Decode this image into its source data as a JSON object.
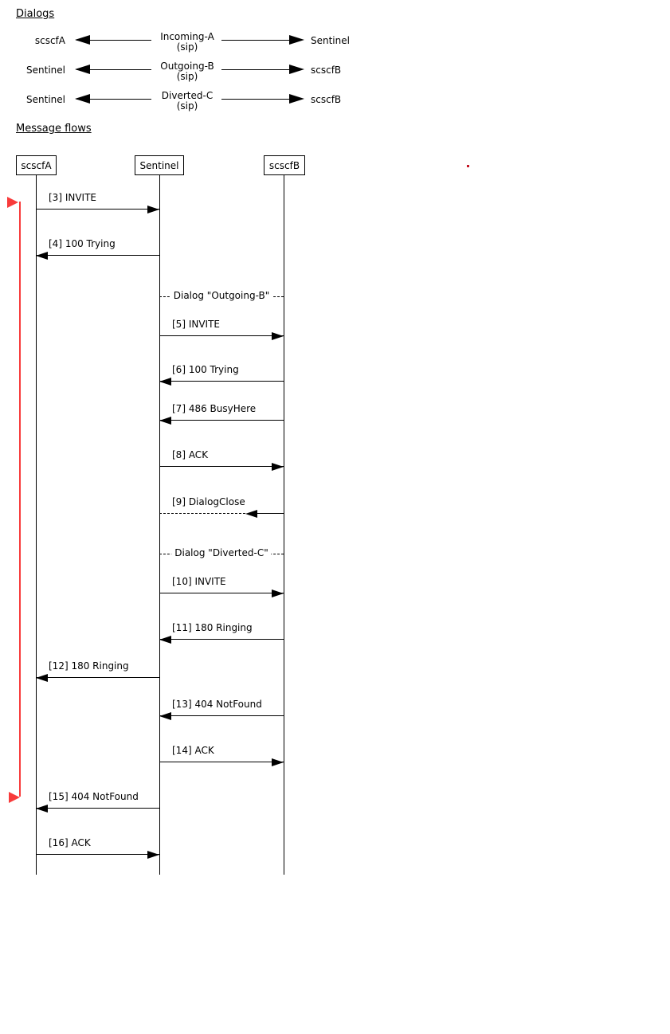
{
  "headings": {
    "dialogs": "Dialogs",
    "message_flows": "Message flows"
  },
  "dialogs": [
    {
      "left": "scscfA",
      "name": "Incoming-A",
      "protocol": "(sip)",
      "right": "Sentinel"
    },
    {
      "left": "Sentinel",
      "name": "Outgoing-B",
      "protocol": "(sip)",
      "right": "scscfB"
    },
    {
      "left": "Sentinel",
      "name": "Diverted-C",
      "protocol": "(sip)",
      "right": "scscfB"
    }
  ],
  "sequence": {
    "participants": [
      "scscfA",
      "Sentinel",
      "scscfB"
    ],
    "messages": [
      {
        "label": "[3] INVITE",
        "from": "scscfA",
        "to": "Sentinel",
        "line": "solid"
      },
      {
        "label": "[4] 100 Trying",
        "from": "Sentinel",
        "to": "scscfA",
        "line": "solid"
      },
      {
        "label": "[5] INVITE",
        "from": "Sentinel",
        "to": "scscfB",
        "line": "solid"
      },
      {
        "label": "[6] 100 Trying",
        "from": "scscfB",
        "to": "Sentinel",
        "line": "solid"
      },
      {
        "label": "[7] 486 BusyHere",
        "from": "scscfB",
        "to": "Sentinel",
        "line": "solid"
      },
      {
        "label": "[8] ACK",
        "from": "Sentinel",
        "to": "scscfB",
        "line": "solid"
      },
      {
        "label": "[9] DialogClose",
        "from": "scscfB",
        "to": "Sentinel",
        "line": "dashed"
      },
      {
        "label": "[10] INVITE",
        "from": "Sentinel",
        "to": "scscfB",
        "line": "solid"
      },
      {
        "label": "[11] 180 Ringing",
        "from": "scscfB",
        "to": "Sentinel",
        "line": "solid"
      },
      {
        "label": "[12] 180 Ringing",
        "from": "Sentinel",
        "to": "scscfA",
        "line": "solid"
      },
      {
        "label": "[13] 404 NotFound",
        "from": "scscfB",
        "to": "Sentinel",
        "line": "solid"
      },
      {
        "label": "[14] ACK",
        "from": "Sentinel",
        "to": "scscfB",
        "line": "solid"
      },
      {
        "label": "[15] 404 NotFound",
        "from": "Sentinel",
        "to": "scscfA",
        "line": "solid"
      },
      {
        "label": "[16] ACK",
        "from": "scscfA",
        "to": "Sentinel",
        "line": "solid"
      }
    ],
    "separators": [
      {
        "label": "Dialog \"Outgoing-B\""
      },
      {
        "label": "Dialog \"Diverted-C\""
      }
    ],
    "highlight_span": {
      "first_message": "[3] INVITE",
      "last_message": "[15] 404 NotFound"
    }
  },
  "colors": {
    "line": "#000000",
    "text": "#000000",
    "highlight": "#f83b3b"
  }
}
